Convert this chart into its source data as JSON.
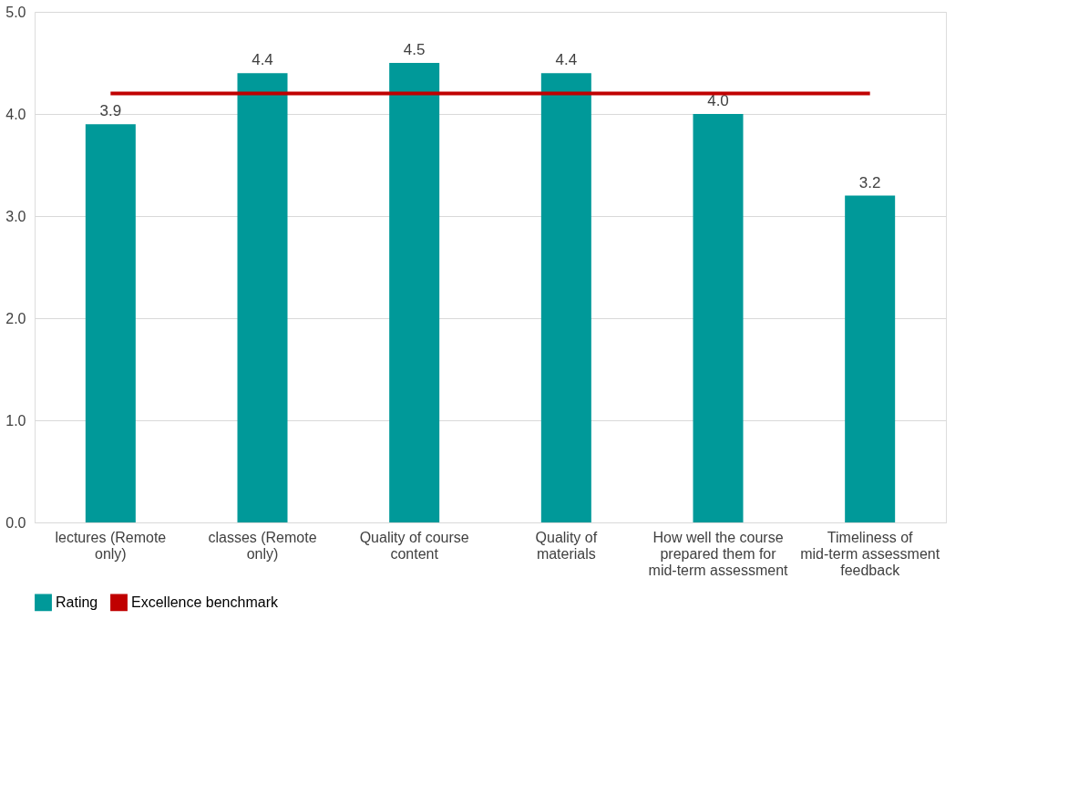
{
  "chart_data": {
    "type": "bar",
    "categories": [
      "lectures (Remote only)",
      "classes (Remote only)",
      "Quality of course content",
      "Quality of materials",
      "How well the course prepared them for mid-term assessment",
      "Timeliness of mid-term assessment feedback"
    ],
    "series": [
      {
        "name": "Rating",
        "color": "#009999",
        "values": [
          3.9,
          4.4,
          4.5,
          4.4,
          4.0,
          3.2
        ],
        "value_labels": [
          "3.9",
          "4.4",
          "4.5",
          "4.4",
          "4.0",
          "3.2"
        ]
      },
      {
        "name": "Excellence benchmark",
        "type": "line",
        "color": "#c00000",
        "values": [
          4.2,
          4.2,
          4.2,
          4.2,
          4.2,
          4.2
        ]
      }
    ],
    "ylim": [
      0,
      5
    ],
    "yticks": [
      {
        "value": 0,
        "label": "0.0"
      },
      {
        "value": 1,
        "label": "1.0"
      },
      {
        "value": 2,
        "label": "2.0"
      },
      {
        "value": 3,
        "label": "3.0"
      },
      {
        "value": 4,
        "label": "4.0"
      },
      {
        "value": 5,
        "label": "5.0"
      }
    ],
    "grid": "y",
    "legend": "bottom"
  }
}
